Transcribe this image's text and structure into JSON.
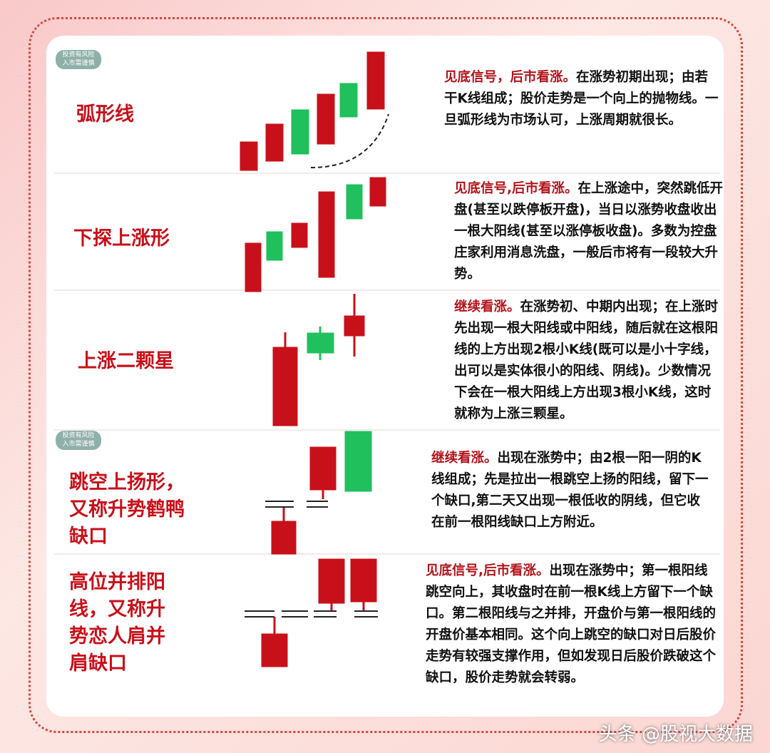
{
  "badge": [
    "投资有风险",
    "入市需谨慎"
  ],
  "rows": [
    {
      "name": "弧形线",
      "highlight": "见底信号，后市看涨。",
      "text": "在涨势初期出现；由若干K线组成；股价走势是一个向上的抛物线。一旦弧形线为市场认可，上涨周期就很长。"
    },
    {
      "name": "下探上涨形",
      "highlight": "见底信号,后市看涨。",
      "text": "在上涨途中，突然跳低开盘(甚至以跌停板开盘)，当日以涨势收盘收出一根大阳线(甚至以涨停板收盘)。多数为控盘庄家利用消息洗盘，一般后市将有一段较大升势。"
    },
    {
      "name": "上涨二颗星",
      "highlight": "继续看涨。",
      "text": "在涨势初、中期内出现；在上涨时先出现一根大阳线或中阳线，随后就在这根阳线的上方出现2根小K线(既可以是小十字线，出可以是实体很小的阳线、阴线)。少数情况下会在一根大阳线上方出现3根小K线，这时就称为上涨三颗星。"
    },
    {
      "name": "跳空上扬形，又称升势鹤鸭缺口",
      "highlight": "继续看涨。",
      "text": "出现在涨势中；由2根一阳一阴的K线组成；先是拉出一根跳空上扬的阳线，留下一个缺口,第二天又出现一根低收的阴线，但它收在前一根阳线缺口上方附近。"
    },
    {
      "name": "高位并排阳线，又称升势恋人肩并肩缺口",
      "highlight": "见底信号,后市看涨。",
      "text": "出现在涨势中；第一根阳线跳空向上，其收盘时在前一根K线上方留下一个缺口。第二根阳线与之并排，开盘价与第一根阳线的开盘价基本相同。这个向上跳空的缺口对日后股价走势有较强支撑作用，但如发现日后股价跌破这个缺口，股价走势就会转弱。"
    }
  ],
  "footer": "头条 @股视大数据"
}
